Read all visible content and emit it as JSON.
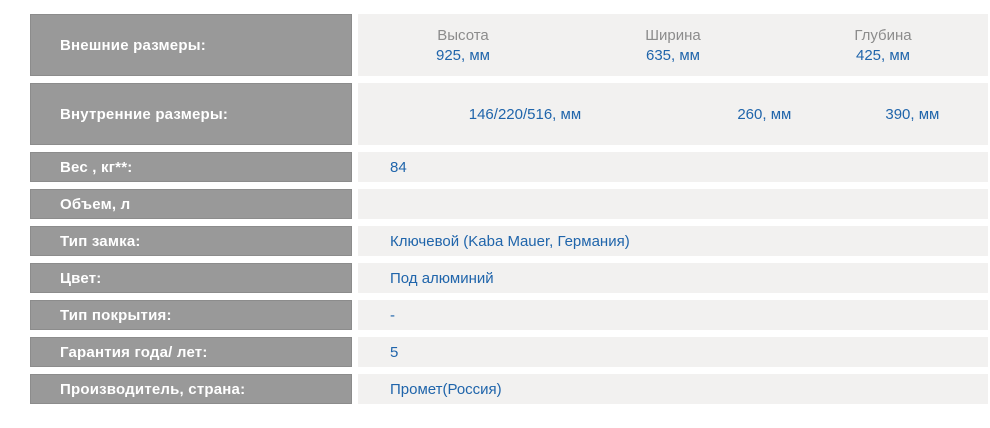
{
  "colors": {
    "page_bg": "#ffffff",
    "label_bg": "#999999",
    "label_border": "#8c8c8c",
    "label_text": "#ffffff",
    "value_bg": "#f2f1f0",
    "value_text": "#2065ab",
    "dim_header_text": "#8c8c8c"
  },
  "spec_table": {
    "outer_dimensions": {
      "label": "Внешние размеры:",
      "columns": [
        {
          "header": "Высота",
          "value": "925, мм"
        },
        {
          "header": "Ширина",
          "value": "635, мм"
        },
        {
          "header": "Глубина",
          "value": "425, мм"
        }
      ]
    },
    "inner_dimensions": {
      "label": "Внутренние размеры:",
      "values": [
        "146/220/516, мм",
        "260, мм",
        "390, мм"
      ]
    },
    "simple_rows": [
      {
        "label": "Вес , кг**:",
        "value": "84"
      },
      {
        "label": "Объем, л",
        "value": ""
      },
      {
        "label": "Тип замка:",
        "value": "Ключевой (Kaba Mauer, Германия)"
      },
      {
        "label": "Цвет:",
        "value": "Под алюминий"
      },
      {
        "label": "Тип покрытия:",
        "value": "-"
      },
      {
        "label": "Гарантия года/ лет:",
        "value": "5"
      },
      {
        "label": "Производитель, страна:",
        "value": "Промет(Россия)"
      }
    ]
  }
}
